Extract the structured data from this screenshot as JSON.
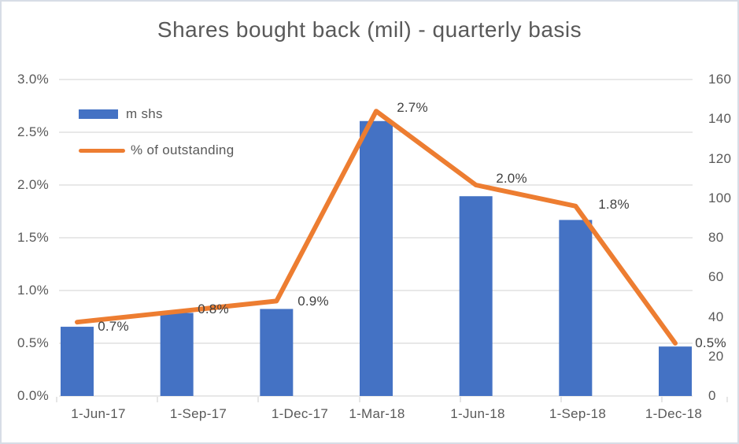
{
  "chart_data": {
    "type": "combo",
    "title": "Shares bought back (mil) - quarterly basis",
    "categories": [
      "1-Jun-17",
      "1-Sep-17",
      "1-Dec-17",
      "1-Mar-18",
      "1-Jun-18",
      "1-Sep-18",
      "1-Dec-18"
    ],
    "series": [
      {
        "name": "m shs",
        "type": "bar",
        "axis": "right",
        "color": "#4472C4",
        "values": [
          35,
          42,
          44,
          139,
          101,
          89,
          25
        ]
      },
      {
        "name": "% of outstanding",
        "type": "line",
        "axis": "left",
        "color": "#ED7D31",
        "values": [
          0.7,
          0.8,
          0.9,
          2.7,
          2.0,
          1.8,
          0.5
        ],
        "data_labels": [
          "0.7%",
          "0.8%",
          "0.9%",
          "2.7%",
          "2.0%",
          "1.8%",
          "0.5%"
        ]
      }
    ],
    "left_axis": {
      "unit": "percent",
      "min": 0,
      "max": 3.0,
      "tick_labels": [
        "3.0%",
        "2.5%",
        "2.0%",
        "1.5%",
        "1.0%",
        "0.5%",
        "0.0%"
      ],
      "tick_values": [
        3.0,
        2.5,
        2.0,
        1.5,
        1.0,
        0.5,
        0.0
      ]
    },
    "right_axis": {
      "min": 0,
      "max": 160,
      "tick_labels": [
        "160",
        "140",
        "120",
        "100",
        "80",
        "60",
        "40",
        "20",
        "0"
      ],
      "tick_values": [
        160,
        140,
        120,
        100,
        80,
        60,
        40,
        20,
        0
      ]
    },
    "grid": true,
    "legend_position": "inside-top-left",
    "colors": {
      "bar": "#4472C4",
      "line": "#ED7D31",
      "title_text": "#595959",
      "axis_text": "#595959",
      "data_label_text": "#404040",
      "gridline": "#D9D9D9",
      "chart_border": "#D7DDE6",
      "background": "#FFFFFF"
    }
  }
}
